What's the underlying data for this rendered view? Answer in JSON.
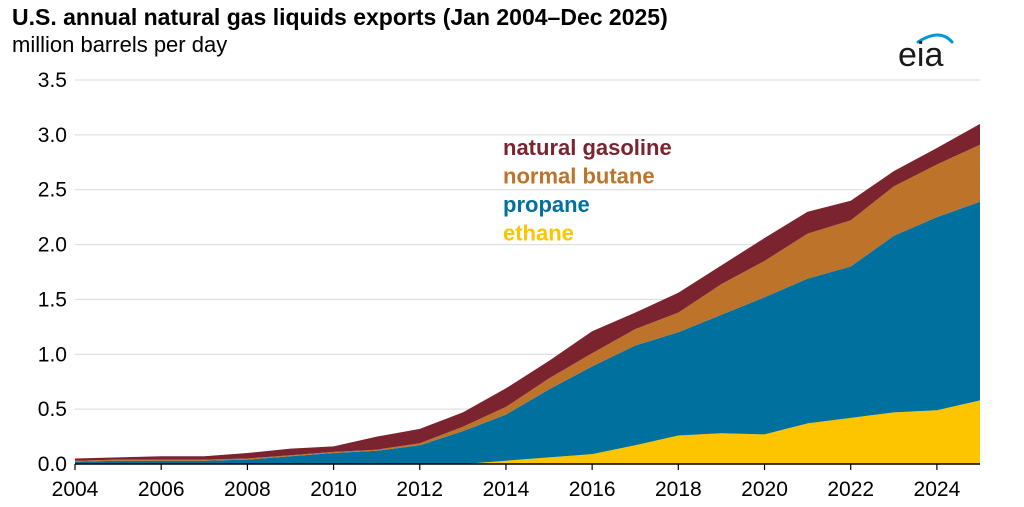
{
  "title": "U.S. annual natural gas liquids exports (Jan 2004–Dec 2025)",
  "subtitle": "million barrels per day",
  "logo_text": "eia",
  "colors": {
    "natural_gasoline": "#7b2430",
    "normal_butane": "#bd732a",
    "propane": "#00709f",
    "ethane": "#fdc500",
    "grid": "#d9d9d9",
    "logo_arc": "#0096d7"
  },
  "chart_data": {
    "type": "area",
    "stacked": true,
    "x": [
      2004,
      2005,
      2006,
      2007,
      2008,
      2009,
      2010,
      2011,
      2012,
      2013,
      2014,
      2015,
      2016,
      2017,
      2018,
      2019,
      2020,
      2021,
      2022,
      2023,
      2024,
      2025
    ],
    "xlim": [
      2004,
      2025
    ],
    "ylim": [
      0,
      3.5
    ],
    "x_ticks": [
      "2004",
      "2006",
      "2008",
      "2010",
      "2012",
      "2014",
      "2016",
      "2018",
      "2020",
      "2022",
      "2024"
    ],
    "y_ticks": [
      "0.0",
      "0.5",
      "1.0",
      "1.5",
      "2.0",
      "2.5",
      "3.0",
      "3.5"
    ],
    "grid": true,
    "legend_position": "inside, upper-middle",
    "series": [
      {
        "name": "ethane",
        "color_key": "ethane",
        "values": [
          0,
          0,
          0,
          0,
          0,
          0,
          0,
          0,
          0,
          0,
          0.03,
          0.06,
          0.09,
          0.17,
          0.26,
          0.28,
          0.27,
          0.37,
          0.42,
          0.47,
          0.49,
          0.58
        ]
      },
      {
        "name": "propane",
        "color_key": "propane",
        "values": [
          0.02,
          0.03,
          0.03,
          0.03,
          0.04,
          0.07,
          0.1,
          0.12,
          0.17,
          0.3,
          0.42,
          0.62,
          0.8,
          0.91,
          0.94,
          1.08,
          1.25,
          1.32,
          1.38,
          1.61,
          1.76,
          1.81
        ]
      },
      {
        "name": "normal butane",
        "color_key": "normal_butane",
        "values": [
          0.01,
          0.01,
          0.01,
          0.01,
          0.01,
          0.01,
          0.01,
          0.01,
          0.02,
          0.04,
          0.07,
          0.1,
          0.12,
          0.15,
          0.18,
          0.28,
          0.33,
          0.41,
          0.42,
          0.45,
          0.48,
          0.52
        ]
      },
      {
        "name": "natural gasoline",
        "color_key": "natural_gasoline",
        "values": [
          0.02,
          0.02,
          0.03,
          0.03,
          0.05,
          0.06,
          0.05,
          0.12,
          0.13,
          0.13,
          0.17,
          0.16,
          0.2,
          0.15,
          0.18,
          0.17,
          0.21,
          0.2,
          0.18,
          0.14,
          0.15,
          0.19
        ]
      }
    ],
    "legend": [
      "natural gasoline",
      "normal butane",
      "propane",
      "ethane"
    ]
  }
}
